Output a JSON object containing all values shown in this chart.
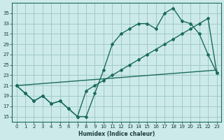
{
  "xlabel": "Humidex (Indice chaleur)",
  "ylabel": "",
  "bg_color": "#cdeaea",
  "grid_color": "#a0c8c8",
  "line_color": "#1a6b5e",
  "xlim": [
    -0.5,
    23.5
  ],
  "ylim": [
    14,
    37
  ],
  "xticks": [
    0,
    1,
    2,
    3,
    4,
    5,
    6,
    7,
    8,
    9,
    10,
    11,
    12,
    13,
    14,
    15,
    16,
    17,
    18,
    19,
    20,
    21,
    22,
    23
  ],
  "yticks": [
    15,
    17,
    19,
    21,
    23,
    25,
    27,
    29,
    31,
    33,
    35
  ],
  "line1_x": [
    0,
    1,
    2,
    3,
    4,
    5,
    6,
    7,
    8,
    9,
    10,
    11,
    12,
    13,
    14,
    15,
    16,
    17,
    18,
    19,
    20,
    21,
    22,
    23
  ],
  "line1_y": [
    21,
    19.5,
    18,
    19,
    17.5,
    18,
    16.5,
    15,
    15,
    19.5,
    24,
    29,
    31,
    32,
    33,
    33,
    32,
    35,
    36,
    33.5,
    33,
    31,
    27,
    23.5
  ],
  "line2_x": [
    0,
    1,
    2,
    3,
    4,
    5,
    6,
    7,
    8,
    9,
    10,
    11,
    12,
    13,
    14,
    15,
    16,
    17,
    18,
    19,
    20,
    21,
    22,
    23
  ],
  "line2_y": [
    21,
    19.5,
    18,
    19,
    17.5,
    18,
    16.5,
    15,
    20,
    21,
    22,
    23,
    24,
    25,
    26,
    27,
    28,
    29,
    30,
    31,
    32,
    33,
    34,
    23.5
  ],
  "line3_x": [
    0,
    23
  ],
  "line3_y": [
    21,
    24
  ]
}
